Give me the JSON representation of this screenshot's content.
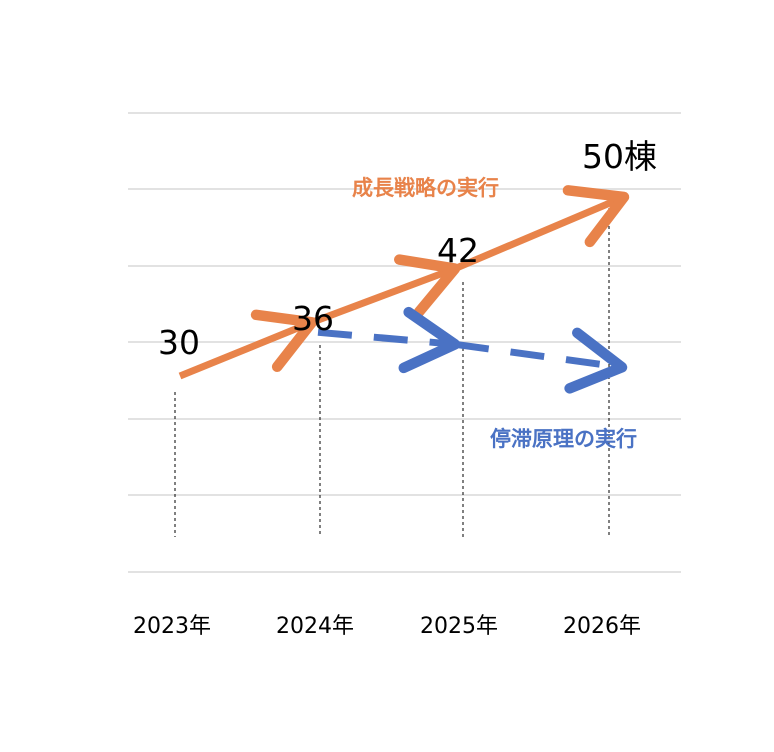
{
  "chart_data": {
    "type": "line",
    "title": "",
    "xlabel": "",
    "ylabel": "",
    "categories": [
      "2023年",
      "2024年",
      "2025年",
      "2026年"
    ],
    "grid": true,
    "series": [
      {
        "name": "成長戦略の実行",
        "color": "#E8834A",
        "style": "solid-arrow",
        "values": [
          30,
          36,
          42,
          50
        ]
      },
      {
        "name": "停滞原理の実行",
        "color": "#4A72C4",
        "style": "dashed-arrow",
        "values": [
          null,
          36,
          null,
          null
        ]
      }
    ],
    "data_labels": [
      "30",
      "36",
      "42",
      "50棟"
    ]
  }
}
